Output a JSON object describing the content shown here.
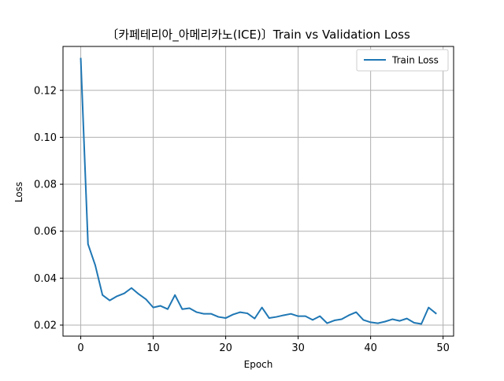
{
  "chart_data": {
    "type": "line",
    "title": "〔카페테리아_아메리카노(ICE)〕Train vs Validation Loss",
    "xlabel": "Epoch",
    "ylabel": "Loss",
    "xlim": [
      -2.45,
      51.45
    ],
    "ylim": [
      0.0153,
      0.1387
    ],
    "x_ticks": [
      0,
      10,
      20,
      30,
      40,
      50
    ],
    "y_ticks": [
      0.02,
      0.04,
      0.06,
      0.08,
      0.1,
      0.12
    ],
    "x_tick_labels": [
      "0",
      "10",
      "20",
      "30",
      "40",
      "50"
    ],
    "y_tick_labels": [
      "0.02",
      "0.04",
      "0.06",
      "0.08",
      "0.10",
      "0.12"
    ],
    "grid": true,
    "legend_position": "upper right",
    "series": [
      {
        "name": "Train Loss",
        "color": "#1f77b4",
        "x": [
          0,
          1,
          2,
          3,
          4,
          5,
          6,
          7,
          8,
          9,
          10,
          11,
          12,
          13,
          14,
          15,
          16,
          17,
          18,
          19,
          20,
          21,
          22,
          23,
          24,
          25,
          26,
          27,
          28,
          29,
          30,
          31,
          32,
          33,
          34,
          35,
          36,
          37,
          38,
          39,
          40,
          41,
          42,
          43,
          44,
          45,
          46,
          47,
          48,
          49
        ],
        "values": [
          0.1335,
          0.0545,
          0.0455,
          0.0328,
          0.0305,
          0.0323,
          0.0335,
          0.0358,
          0.0332,
          0.031,
          0.0275,
          0.0282,
          0.0268,
          0.0328,
          0.0268,
          0.0272,
          0.0255,
          0.0248,
          0.0248,
          0.0235,
          0.023,
          0.0245,
          0.0255,
          0.025,
          0.0228,
          0.0275,
          0.023,
          0.0235,
          0.0242,
          0.0248,
          0.0238,
          0.0238,
          0.0222,
          0.0238,
          0.0208,
          0.022,
          0.0225,
          0.0242,
          0.0255,
          0.0222,
          0.0212,
          0.0208,
          0.0215,
          0.0225,
          0.0218,
          0.0228,
          0.021,
          0.0205,
          0.0275,
          0.025
        ]
      }
    ]
  }
}
